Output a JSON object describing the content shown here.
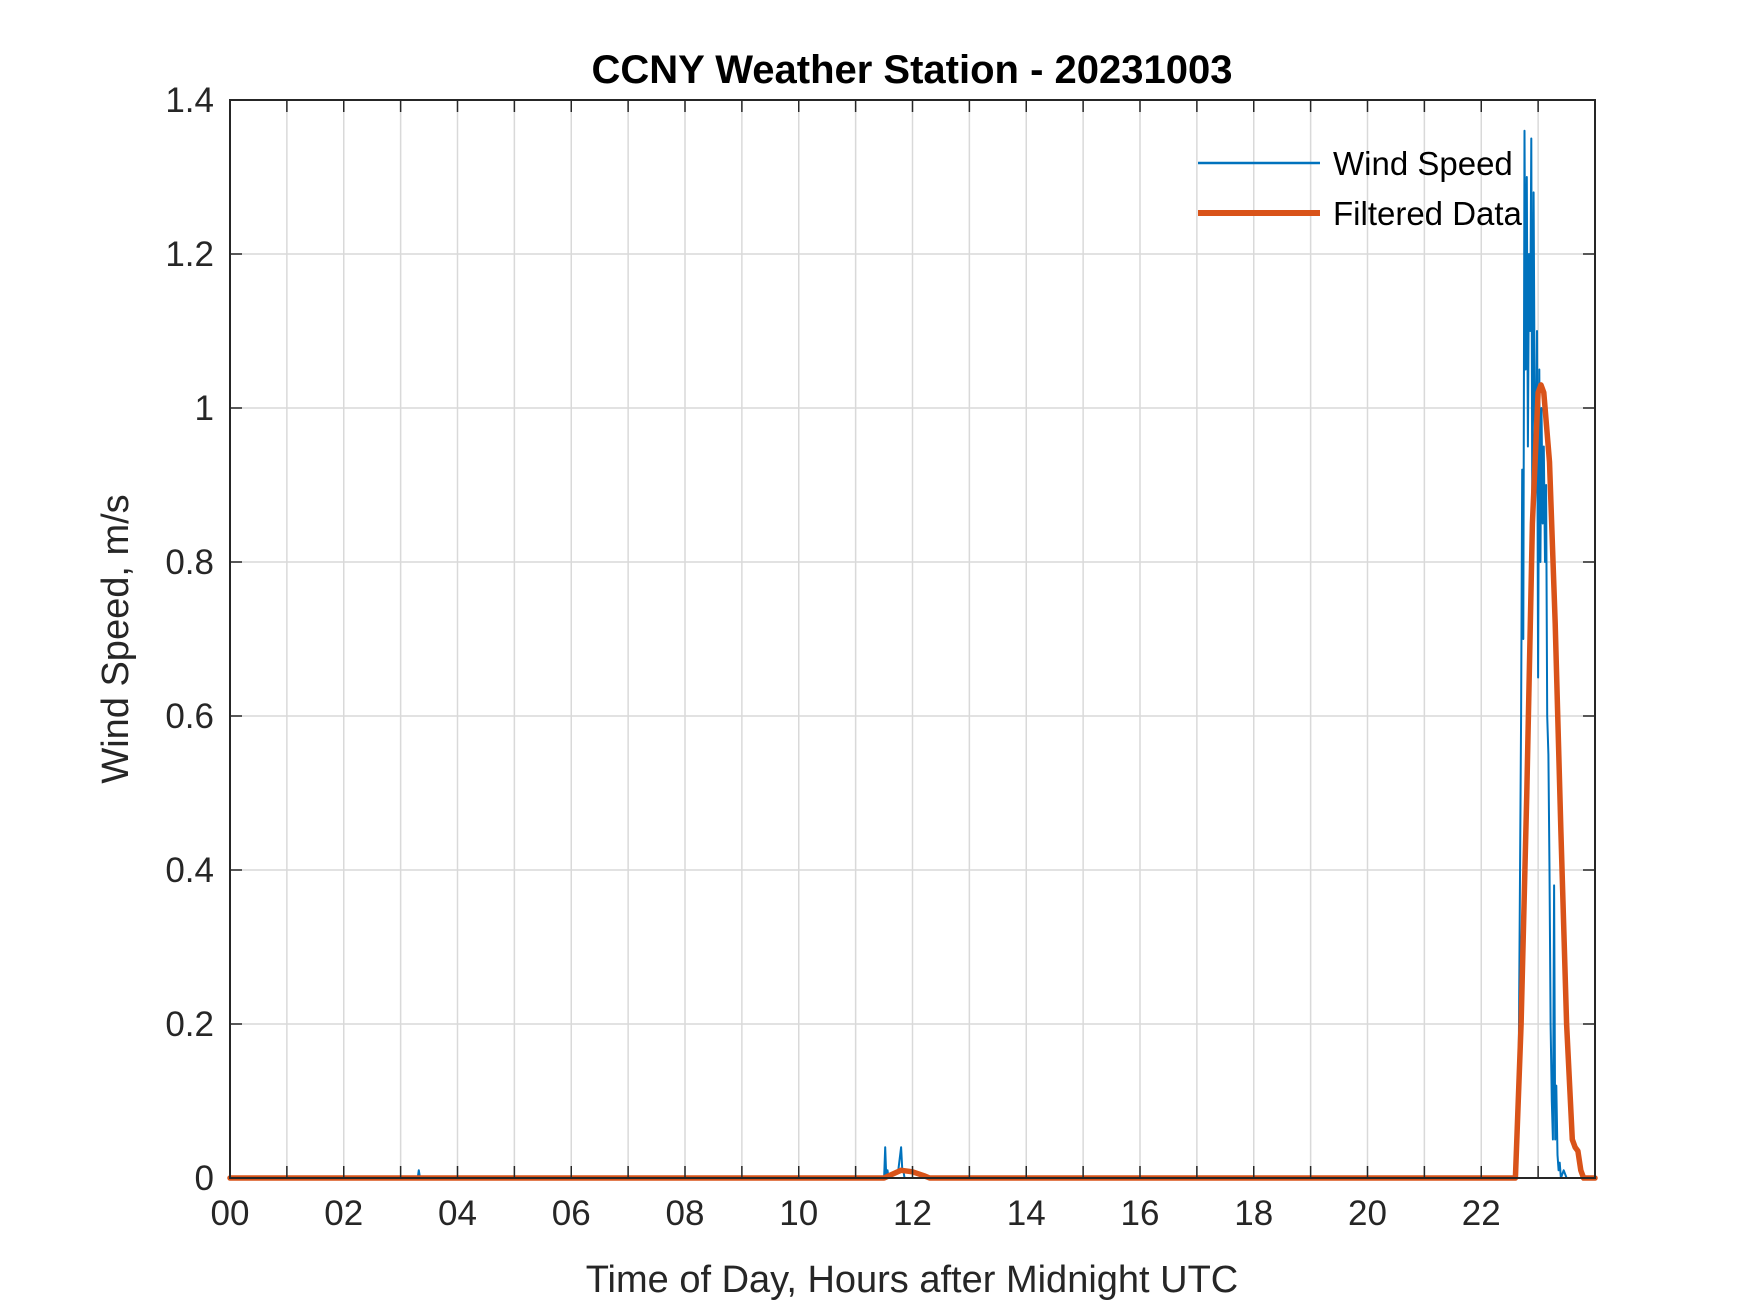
{
  "chart_data": {
    "type": "line",
    "title": "CCNY Weather Station - 20231003",
    "xlabel": "Time of Day, Hours after Midnight UTC",
    "ylabel": "Wind Speed, m/s",
    "xlim": [
      0,
      24
    ],
    "ylim": [
      0,
      1.4
    ],
    "xticks": [
      0,
      2,
      4,
      6,
      8,
      10,
      12,
      14,
      16,
      18,
      20,
      22
    ],
    "xtick_labels": [
      "00",
      "02",
      "04",
      "06",
      "08",
      "10",
      "12",
      "14",
      "16",
      "18",
      "20",
      "22"
    ],
    "xgrid": [
      1,
      2,
      3,
      4,
      5,
      6,
      7,
      8,
      9,
      10,
      11,
      12,
      13,
      14,
      15,
      16,
      17,
      18,
      19,
      20,
      21,
      22,
      23
    ],
    "yticks": [
      0,
      0.2,
      0.4,
      0.6,
      0.8,
      1.0,
      1.2,
      1.4
    ],
    "ytick_labels": [
      "0",
      "0.2",
      "0.4",
      "0.6",
      "0.8",
      "1",
      "1.2",
      "1.4"
    ],
    "grid": true,
    "legend_position": "top-right",
    "series": [
      {
        "name": "Wind Speed",
        "color": "#0072BD",
        "x": [
          0,
          3.3,
          3.32,
          3.34,
          3.36,
          11.5,
          11.52,
          11.54,
          11.56,
          11.58,
          11.75,
          11.8,
          11.82,
          11.84,
          11.86,
          12.1,
          22.6,
          22.65,
          22.7,
          22.72,
          22.74,
          22.76,
          22.78,
          22.8,
          22.82,
          22.84,
          22.86,
          22.88,
          22.9,
          22.92,
          22.94,
          22.96,
          22.98,
          23.0,
          23.02,
          23.04,
          23.06,
          23.08,
          23.1,
          23.12,
          23.14,
          23.16,
          23.18,
          23.2,
          23.22,
          23.24,
          23.26,
          23.28,
          23.3,
          23.32,
          23.34,
          23.36,
          23.38,
          23.4,
          23.45,
          23.5,
          23.95
        ],
        "y": [
          0,
          0,
          0.01,
          0,
          0,
          0,
          0.04,
          0,
          0.01,
          0,
          0.01,
          0.04,
          0.01,
          0.01,
          0,
          0,
          0,
          0.05,
          0.6,
          0.92,
          0.7,
          1.36,
          1.05,
          1.3,
          0.95,
          1.2,
          1.1,
          1.35,
          0.8,
          1.28,
          1.0,
          0.9,
          1.1,
          0.65,
          1.05,
          0.8,
          1.0,
          0.85,
          0.95,
          0.8,
          0.9,
          0.6,
          0.55,
          0.4,
          0.2,
          0.1,
          0.05,
          0.38,
          0.05,
          0.12,
          0.03,
          0.01,
          0.02,
          0,
          0.01,
          0,
          0
        ]
      },
      {
        "name": "Filtered Data",
        "color": "#D95319",
        "x": [
          0,
          11.5,
          11.8,
          12.0,
          12.2,
          12.3,
          22.6,
          22.7,
          22.8,
          22.9,
          23.0,
          23.05,
          23.1,
          23.2,
          23.3,
          23.4,
          23.5,
          23.6,
          23.65,
          23.7,
          23.75,
          23.8,
          24.0
        ],
        "y": [
          0,
          0,
          0.01,
          0.008,
          0.003,
          0,
          0,
          0.2,
          0.5,
          0.85,
          1.02,
          1.03,
          1.02,
          0.93,
          0.72,
          0.45,
          0.2,
          0.05,
          0.04,
          0.035,
          0.01,
          0,
          0
        ]
      }
    ]
  }
}
